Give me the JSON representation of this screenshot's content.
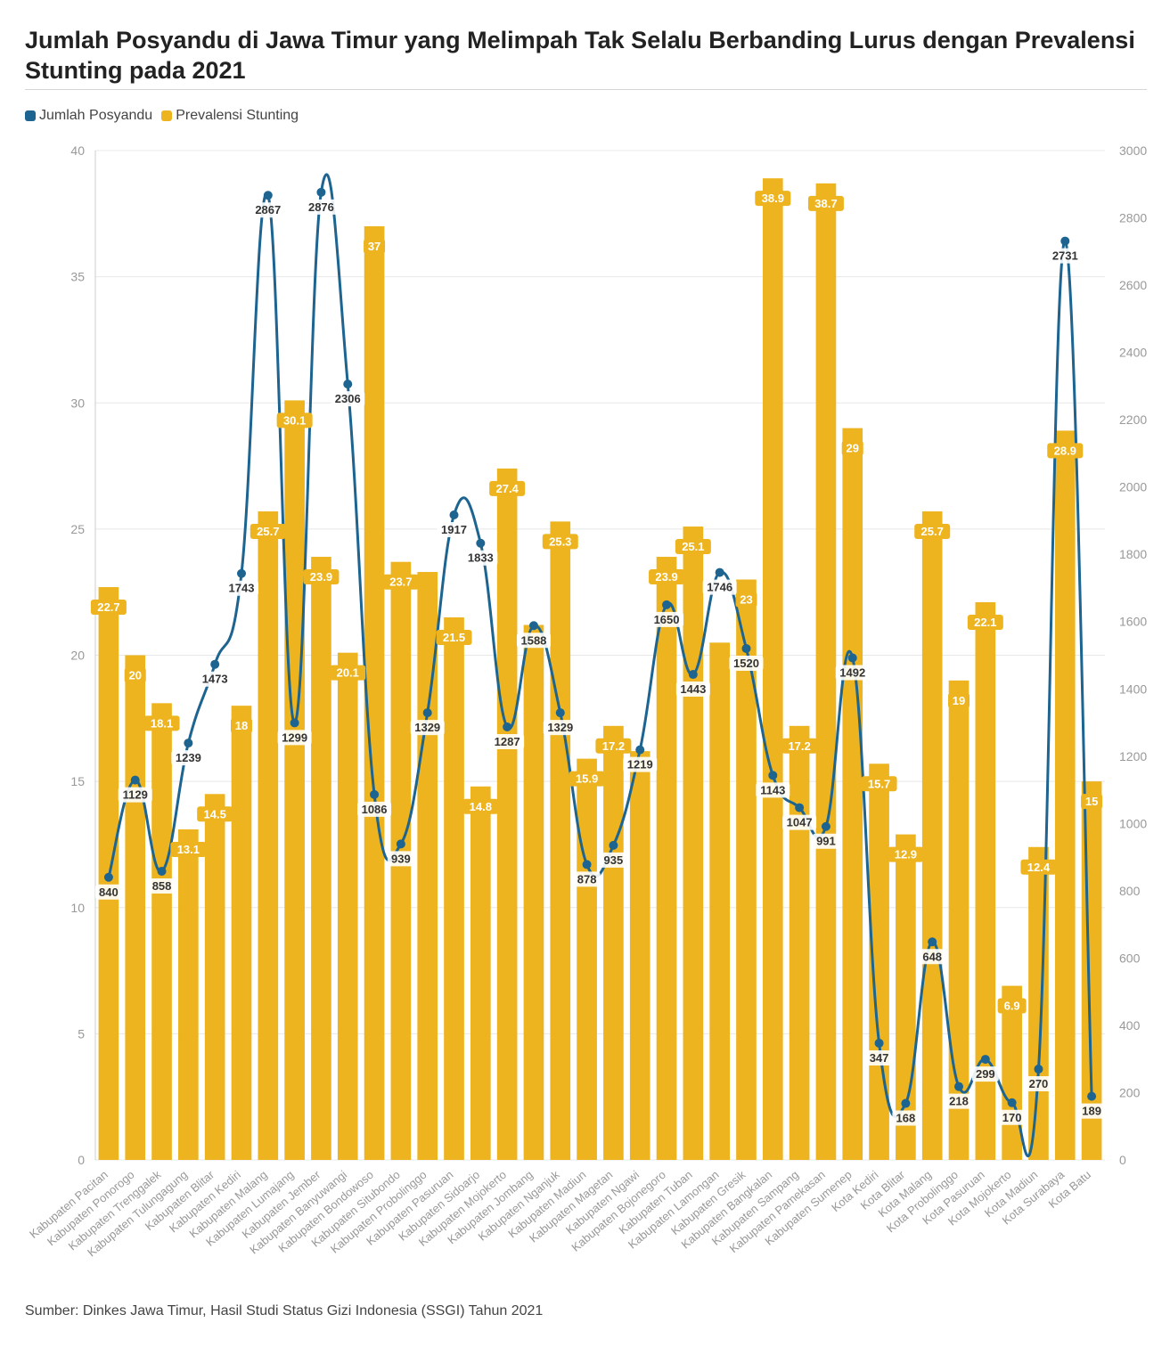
{
  "title": "Jumlah Posyandu di Jawa Timur yang Melimpah Tak Selalu Berbanding Lurus dengan Prevalensi Stunting pada 2021",
  "source": "Sumber: Dinkes Jawa Timur, Hasil Studi Status Gizi Indonesia (SSGI) Tahun 2021",
  "colors": {
    "line": "#1d6490",
    "bar": "#edb420",
    "grid": "#e8e8e8",
    "axis_text": "#999999"
  },
  "legend": [
    {
      "label": "Jumlah Posyandu",
      "color": "#1d6490"
    },
    {
      "label": "Prevalensi Stunting",
      "color": "#edb420"
    }
  ],
  "chart_data": {
    "type": "bar+line",
    "categories": [
      "Kabupaten Pacitan",
      "Kabupaten Ponorogo",
      "Kabupaten Trenggalek",
      "Kabupaten Tulungagung",
      "Kabupaten Blitar",
      "Kabupaten Kediri",
      "Kabupaten Malang",
      "Kabupaten Lumajang",
      "Kabupaten Jember",
      "Kabupaten Banyuwangi",
      "Kabupaten Bondowoso",
      "Kabupaten Situbondo",
      "Kabupaten Probolinggo",
      "Kabupaten Pasuruan",
      "Kabupaten Sidoarjo",
      "Kabupaten Mojokerto",
      "Kabupaten Jombang",
      "Kabupaten Nganjuk",
      "Kabupaten Madiun",
      "Kabupaten Magetan",
      "Kabupaten Ngawi",
      "Kabupaten Bojonegoro",
      "Kabupaten Tuban",
      "Kabupaten Lamongan",
      "Kabupaten Gresik",
      "Kabupaten Bangkalan",
      "Kabupaten Sampang",
      "Kabupaten Pamekasan",
      "Kabupaten Sumenep",
      "Kota Kediri",
      "Kota Blitar",
      "Kota Malang",
      "Kota Probolinggo",
      "Kota Pasuruan",
      "Kota Mojokerto",
      "Kota Madiun",
      "Kota Surabaya",
      "Kota Batu"
    ],
    "series": [
      {
        "name": "Prevalensi Stunting",
        "type": "bar",
        "axis": "left",
        "values": [
          22.7,
          20,
          18.1,
          13.1,
          14.5,
          18,
          25.7,
          30.1,
          23.9,
          20.1,
          37,
          23.7,
          23.3,
          21.5,
          14.8,
          27.4,
          21.2,
          25.3,
          15.9,
          17.2,
          16.2,
          23.9,
          25.1,
          20.5,
          23,
          38.9,
          17.2,
          38.7,
          29,
          15.7,
          12.9,
          25.7,
          19,
          22.1,
          6.9,
          12.4,
          28.9,
          15
        ],
        "labels": [
          "22.7",
          "20",
          "18.1",
          "13.1",
          "14.5",
          "18",
          "25.7",
          "30.1",
          "23.9",
          "20.1",
          "37",
          "23.7",
          "",
          "21.5",
          "14.8",
          "27.4",
          "",
          "25.3",
          "15.9",
          "17.2",
          "",
          "23.9",
          "25.1",
          "",
          "23",
          "38.9",
          "17.2",
          "38.7",
          "29",
          "15.7",
          "12.9",
          "25.7",
          "19",
          "22.1",
          "6.9",
          "12.4",
          "28.9",
          "15"
        ]
      },
      {
        "name": "Jumlah Posyandu",
        "type": "line",
        "axis": "right",
        "values": [
          840,
          1129,
          858,
          1239,
          1473,
          1743,
          2867,
          1299,
          2876,
          2306,
          1086,
          939,
          1329,
          1917,
          1833,
          1287,
          1588,
          1329,
          878,
          935,
          1219,
          1650,
          1443,
          1746,
          1520,
          1143,
          1047,
          991,
          1492,
          347,
          168,
          648,
          218,
          299,
          170,
          270,
          2731,
          189
        ],
        "labels": [
          "840",
          "1129",
          "858",
          "1239",
          "1473",
          "1743",
          "2867",
          "1299",
          "2876",
          "2306",
          "1086",
          "939",
          "1329",
          "1917",
          "1833",
          "1287",
          "1588",
          "1329",
          "878",
          "935",
          "1219",
          "1650",
          "1443",
          "1746",
          "1520",
          "1143",
          "1047",
          "991",
          "1492",
          "347",
          "168",
          "648",
          "218",
          "299",
          "170",
          "270",
          "2731",
          "189"
        ]
      }
    ],
    "y_left": {
      "min": 0,
      "max": 40,
      "ticks": [
        "0",
        "5",
        "10",
        "15",
        "20",
        "25",
        "30",
        "35",
        "40"
      ]
    },
    "y_right": {
      "min": 0,
      "max": 3000,
      "ticks": [
        "0",
        "200",
        "400",
        "600",
        "800",
        "1000",
        "1200",
        "1400",
        "1600",
        "1800",
        "2000",
        "2200",
        "2400",
        "2600",
        "2800",
        "3000"
      ]
    }
  }
}
